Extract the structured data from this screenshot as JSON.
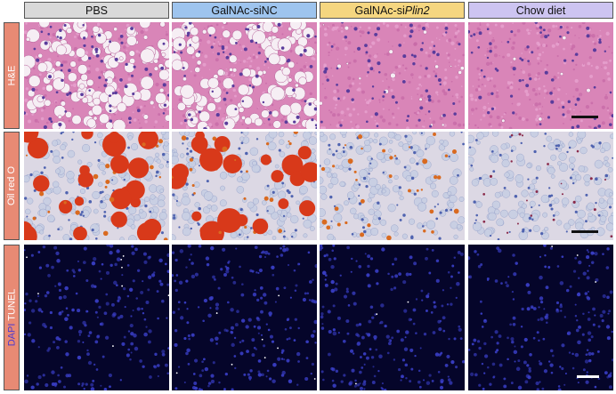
{
  "columns": [
    {
      "label": "PBS",
      "color": "#d9d9d9"
    },
    {
      "label": "GalNAc-siNC",
      "color": "#9ec4ee"
    },
    {
      "label_prefix": "GalNAc-si",
      "label_gene": "Plin2",
      "color": "#f5d680"
    },
    {
      "label": "Chow diet",
      "color": "#cdc4f1"
    }
  ],
  "rows": [
    {
      "label": "H&E",
      "stain": "he"
    },
    {
      "label": "Oil red O",
      "stain": "oro"
    },
    {
      "label_blue": "DAPI",
      "label_white": "TUNEL",
      "stain": "tunel"
    }
  ],
  "colors": {
    "row_label_bg": "#e88a74",
    "he_background": "#d985b8",
    "oro_background": "#dcd8e4",
    "tunel_background": "#05052a",
    "lipid_droplet": "#d8391a",
    "nucleus_blue": "#3a3fc8"
  }
}
